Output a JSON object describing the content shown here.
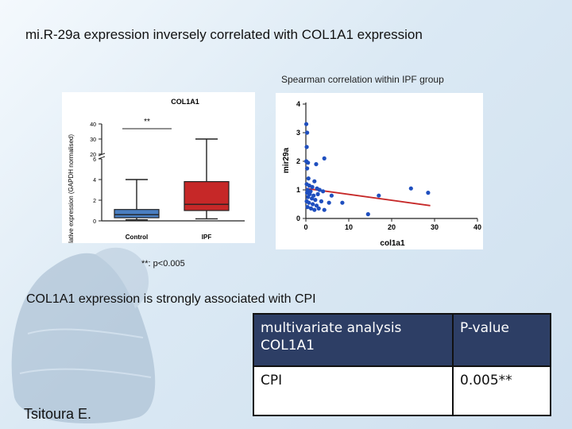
{
  "slide": {
    "title": "mi.R-29a expression inversely correlated with COL1A1 expression",
    "subtitle": "Spearman correlation within IPF group",
    "note": "**: p<0.005",
    "association_text": "COL1A1 expression is strongly associated with CPI",
    "author": "Tsitoura E."
  },
  "table": {
    "header": [
      "multivariate analysis COL1A1",
      "P-value"
    ],
    "rows": [
      [
        "CPI",
        "0.005**"
      ]
    ],
    "header_color": "#2d3e65"
  },
  "chart_data": [
    {
      "type": "box",
      "title": "COL1A1",
      "ylabel": "relative expression (GAPDH normalised)",
      "axis": "broken y-axis: lower segment 0-6, upper segment 20-40",
      "lower_ticks": [
        0,
        2,
        4,
        6
      ],
      "upper_ticks": [
        20,
        30,
        40
      ],
      "significance": "**",
      "categories": [
        "Control",
        "IPF"
      ],
      "series": [
        {
          "name": "Control",
          "min": 0.1,
          "q1": 0.3,
          "median": 0.6,
          "q3": 1.1,
          "max": 4.0,
          "color": "#4a7fc2"
        },
        {
          "name": "IPF",
          "min": 0.2,
          "q1": 1.0,
          "median": 1.6,
          "q3": 3.8,
          "max": 30,
          "color": "#c62828"
        }
      ]
    },
    {
      "type": "scatter",
      "xlabel": "col1a1",
      "ylabel": "mir29a",
      "xlim": [
        0,
        40
      ],
      "ylim": [
        0,
        4
      ],
      "xticks": [
        0,
        10,
        20,
        30,
        40
      ],
      "yticks": [
        0,
        1,
        2,
        3,
        4
      ],
      "point_color": "#1f4fbf",
      "fit_color": "#c62828",
      "fit_line": [
        [
          0,
          1.05
        ],
        [
          29,
          0.45
        ]
      ],
      "points": [
        [
          0.1,
          3.3
        ],
        [
          0.3,
          3.0
        ],
        [
          0.2,
          2.5
        ],
        [
          0.1,
          2.0
        ],
        [
          0.5,
          1.95
        ],
        [
          0.3,
          1.75
        ],
        [
          2.4,
          1.9
        ],
        [
          4.3,
          2.1
        ],
        [
          0.6,
          1.4
        ],
        [
          2.0,
          1.3
        ],
        [
          0.2,
          1.2
        ],
        [
          0.8,
          1.15
        ],
        [
          1.5,
          1.1
        ],
        [
          2.6,
          1.05
        ],
        [
          0.4,
          1.0
        ],
        [
          1.1,
          0.95
        ],
        [
          3.2,
          1.0
        ],
        [
          4.0,
          0.95
        ],
        [
          0.3,
          0.9
        ],
        [
          0.9,
          0.85
        ],
        [
          1.8,
          0.8
        ],
        [
          2.8,
          0.85
        ],
        [
          6.0,
          0.8
        ],
        [
          0.5,
          0.75
        ],
        [
          1.4,
          0.7
        ],
        [
          2.2,
          0.65
        ],
        [
          0.2,
          0.6
        ],
        [
          0.7,
          0.55
        ],
        [
          1.6,
          0.5
        ],
        [
          2.5,
          0.45
        ],
        [
          3.6,
          0.6
        ],
        [
          5.4,
          0.55
        ],
        [
          8.5,
          0.55
        ],
        [
          0.4,
          0.4
        ],
        [
          1.2,
          0.35
        ],
        [
          2.0,
          0.3
        ],
        [
          3.0,
          0.35
        ],
        [
          4.3,
          0.3
        ],
        [
          17.0,
          0.8
        ],
        [
          24.5,
          1.05
        ],
        [
          28.5,
          0.9
        ],
        [
          14.5,
          0.15
        ]
      ]
    }
  ]
}
